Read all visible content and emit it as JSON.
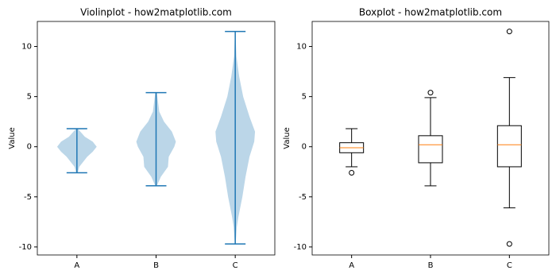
{
  "chart_data": [
    {
      "type": "violin",
      "title": "Violinplot - how2matplotlib.com",
      "ylabel": "Value",
      "categories": [
        "A",
        "B",
        "C"
      ],
      "color": "#1f77b4",
      "ylim": [
        -10.8,
        12.5
      ],
      "yticks": [
        -10,
        -5,
        0,
        5,
        10
      ],
      "distributions": [
        {
          "min": -2.6,
          "max": 1.8,
          "kde_y": [
            -2.6,
            -2,
            -1,
            -0.5,
            0,
            0.5,
            1,
            1.8
          ],
          "kde_width": [
            0.01,
            0.03,
            0.13,
            0.2,
            0.25,
            0.2,
            0.1,
            0.01
          ]
        },
        {
          "min": -3.9,
          "max": 5.4,
          "kde_y": [
            -3.9,
            -3,
            -2,
            -1,
            0,
            0.5,
            1.5,
            2.5,
            3.5,
            5.4
          ],
          "kde_width": [
            0.01,
            0.06,
            0.15,
            0.16,
            0.23,
            0.25,
            0.2,
            0.1,
            0.04,
            0.01
          ]
        },
        {
          "min": -9.7,
          "max": 11.5,
          "kde_y": [
            -9.7,
            -8,
            -7,
            -5,
            -3,
            -1,
            0.5,
            1.5,
            3,
            5,
            7,
            9,
            11.5
          ],
          "kde_width": [
            0.005,
            0.02,
            0.04,
            0.09,
            0.13,
            0.18,
            0.24,
            0.25,
            0.18,
            0.1,
            0.05,
            0.015,
            0.002
          ]
        }
      ]
    },
    {
      "type": "box",
      "title": "Boxplot - how2matplotlib.com",
      "ylabel": "Value",
      "categories": [
        "A",
        "B",
        "C"
      ],
      "color": "#000000",
      "median_color": "#ff7f0e",
      "ylim": [
        -10.8,
        12.5
      ],
      "yticks": [
        -10,
        -5,
        0,
        5,
        10
      ],
      "boxes": [
        {
          "whislo": -2.0,
          "q1": -0.6,
          "med": -0.1,
          "q3": 0.4,
          "whishi": 1.8,
          "fliers": [
            -2.6
          ]
        },
        {
          "whislo": -3.9,
          "q1": -1.6,
          "med": 0.2,
          "q3": 1.1,
          "whishi": 4.9,
          "fliers": [
            5.4
          ]
        },
        {
          "whislo": -6.1,
          "q1": -2.0,
          "med": 0.2,
          "q3": 2.1,
          "whishi": 6.9,
          "fliers": [
            11.5,
            -9.7
          ]
        }
      ]
    }
  ]
}
